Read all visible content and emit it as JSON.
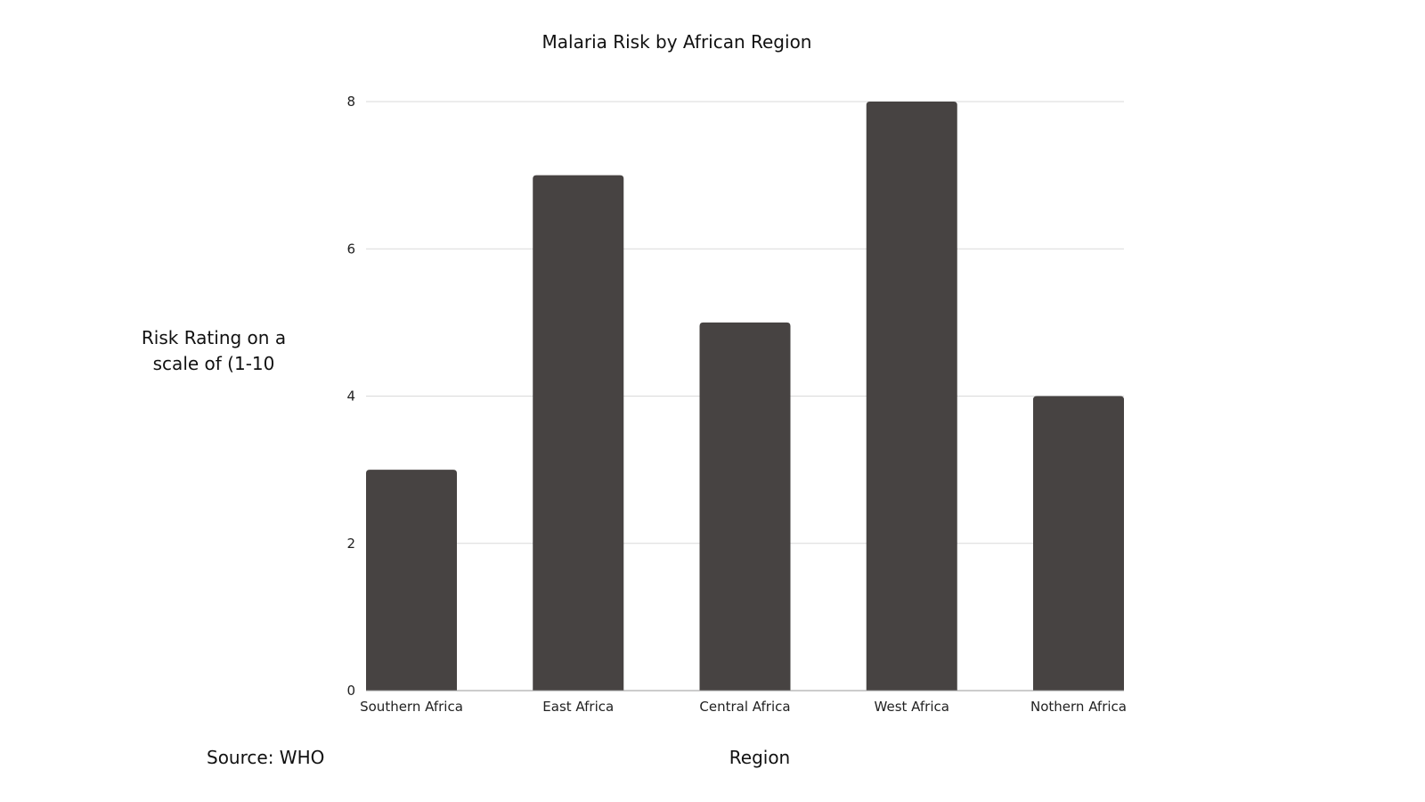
{
  "chart_data": {
    "type": "bar",
    "title": "Malaria Risk by African Region",
    "xlabel": "Region",
    "ylabel": "Risk Rating on a scale of (1-10",
    "categories": [
      "Southern Africa",
      "East Africa",
      "Central Africa",
      "West Africa",
      "Nothern Africa"
    ],
    "values": [
      3,
      7,
      5,
      8,
      4
    ],
    "ylim": [
      0,
      8
    ],
    "yticks": [
      0,
      2,
      4,
      6,
      8
    ],
    "grid": true,
    "bar_color": "#474342",
    "annotation": "Source: WHO"
  }
}
